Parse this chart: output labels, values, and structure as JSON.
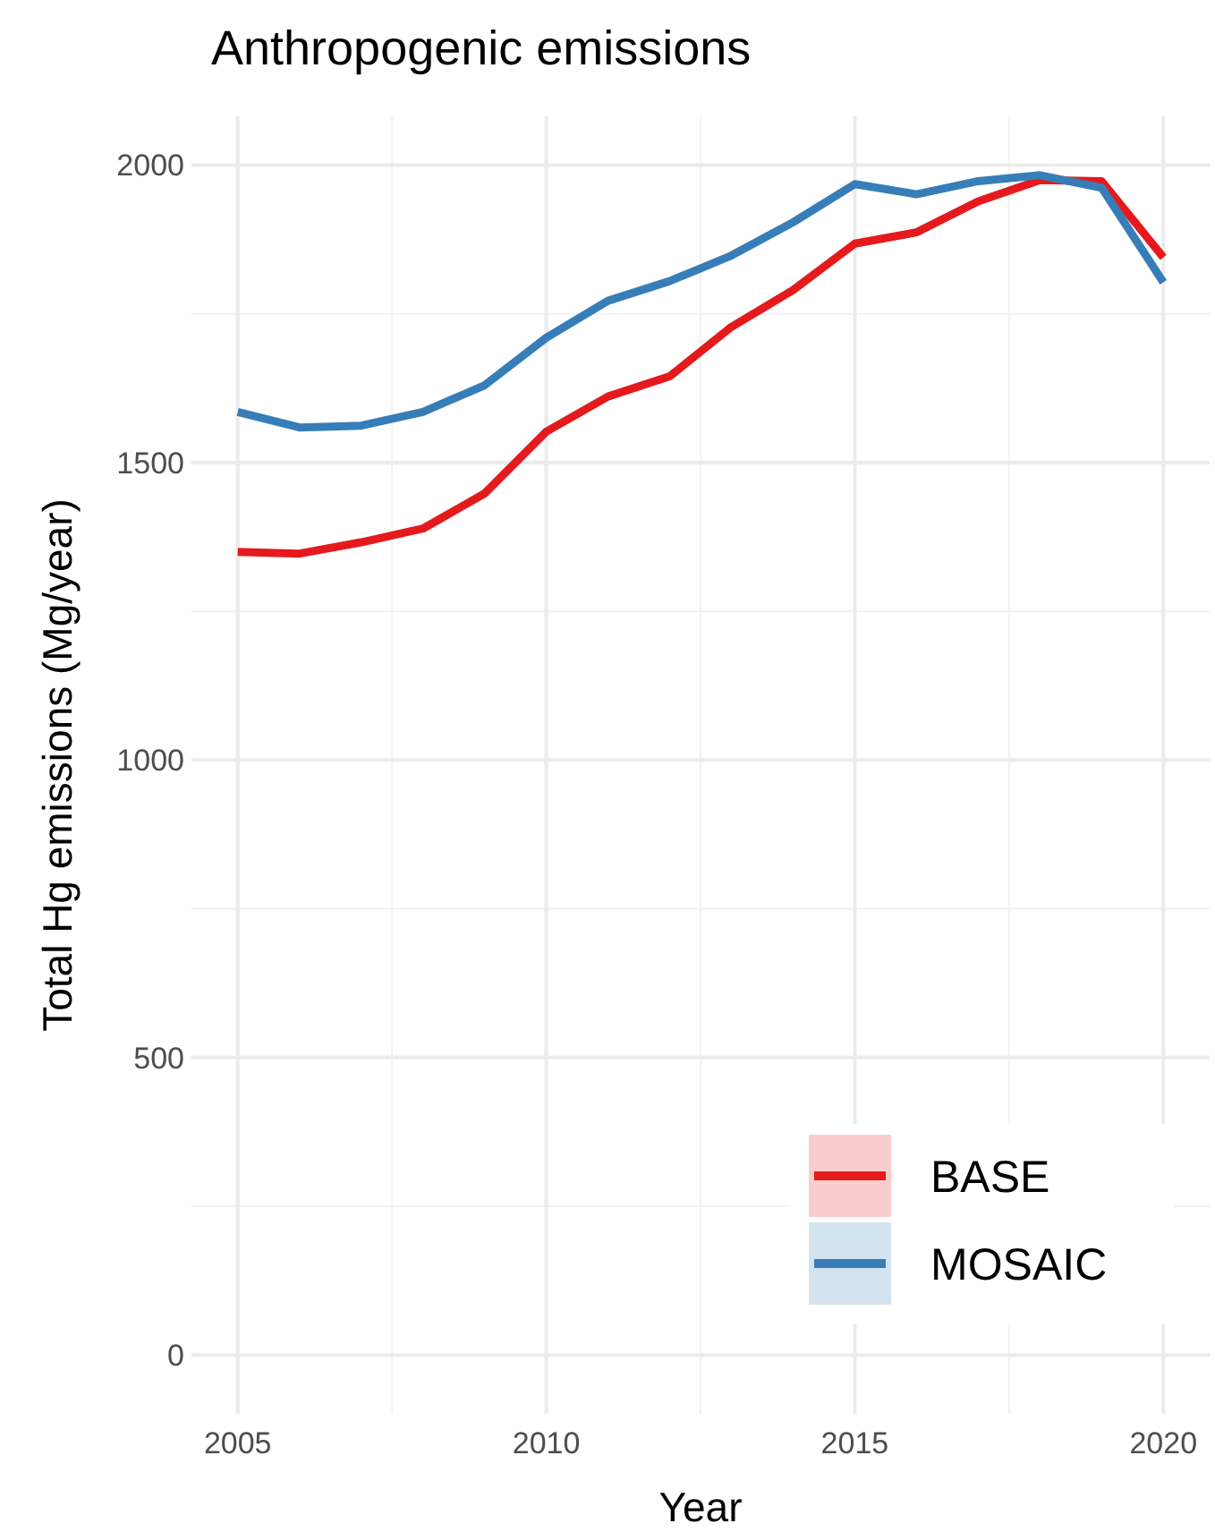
{
  "chart_data": {
    "type": "line",
    "title": "Anthropogenic emissions",
    "xlabel": "Year",
    "ylabel": "Total Hg emissions (Mg/year)",
    "x": [
      2005,
      2006,
      2007,
      2008,
      2009,
      2010,
      2011,
      2012,
      2013,
      2014,
      2015,
      2016,
      2017,
      2018,
      2019,
      2020
    ],
    "series": [
      {
        "name": "BASE",
        "color": "#e41a1c",
        "values": [
          1350,
          1347,
          1366,
          1389,
          1448,
          1552,
          1611,
          1645,
          1728,
          1790,
          1868,
          1887,
          1939,
          1975,
          1973,
          1845
        ]
      },
      {
        "name": "MOSAIC",
        "color": "#377eb8",
        "values": [
          1585,
          1559,
          1562,
          1585,
          1630,
          1710,
          1772,
          1805,
          1848,
          1904,
          1968,
          1951,
          1973,
          1983,
          1962,
          1803
        ]
      }
    ],
    "xlim": [
      2004.25,
      2020.75
    ],
    "xticks": [
      2005,
      2010,
      2015,
      2020
    ],
    "ylim": [
      -99,
      2082
    ],
    "yticks": [
      0,
      500,
      1000,
      1500,
      2000
    ],
    "grid": true,
    "legend": "bottom right",
    "line_style": "solid",
    "marker": "none"
  }
}
